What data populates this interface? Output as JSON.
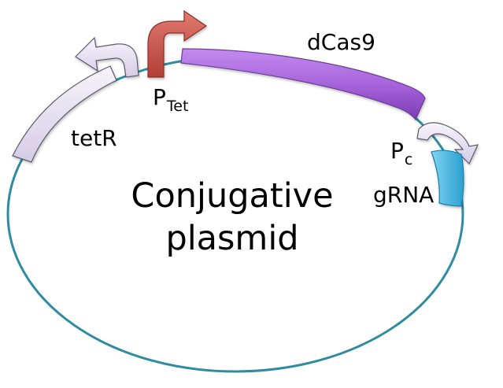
{
  "title": {
    "line1": "Conjugative",
    "line2": "plasmid"
  },
  "genes": {
    "dcas9": "dCas9",
    "tetr": "tetR",
    "grna": "gRNA"
  },
  "promoters": {
    "ptet": {
      "base": "P",
      "sub": "Tet"
    },
    "pc": {
      "base": "P",
      "sub": "c"
    }
  },
  "colors": {
    "backbone": "#2e8ca0",
    "dcas9": "#a35fd8",
    "ptet": "#c8544a",
    "grna": "#3fb8e3",
    "tetr_fill": "#e8e2f1",
    "arrow_fill": "#ddd3ea",
    "outline": "#5a5a6a"
  }
}
